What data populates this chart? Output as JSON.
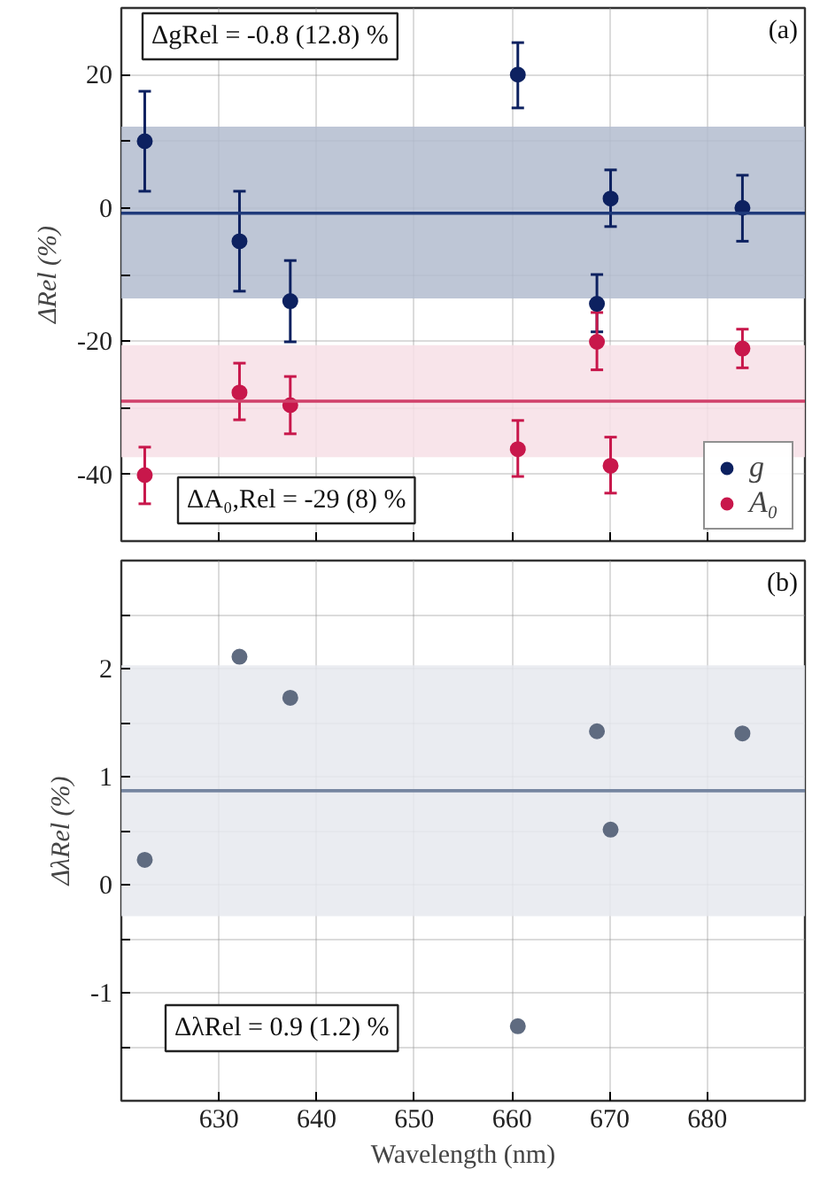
{
  "chart_data": [
    {
      "type": "scatter",
      "ylabel": "ΔRel (%)",
      "xlim": [
        620,
        690
      ],
      "xticks": [
        630,
        640,
        650,
        660,
        670,
        680
      ],
      "ylim": [
        -50,
        30
      ],
      "yticks": [
        -40,
        {
          "value": -30,
          "label": null
        },
        -20,
        {
          "value": -10,
          "label": null
        },
        0,
        {
          "value": 10,
          "label": null
        },
        20
      ],
      "tick_labels": "y",
      "grid": true,
      "legend": "bottom right",
      "marker": "circle",
      "annotations": [
        "(a)",
        "ΔgRel = -0.8 (12.8) %",
        "ΔA₀,Rel = -29 (8) %"
      ],
      "ref_lines": [
        {
          "axis": "y",
          "value": -0.8,
          "color": "#1f3a7a"
        },
        {
          "axis": "y",
          "value": -29,
          "color": "#d0406a"
        }
      ],
      "bands": [
        {
          "axis": "y",
          "from": -13.6,
          "to": 12.2,
          "color": "#b3bccf"
        },
        {
          "axis": "y",
          "from": -37.4,
          "to": -20.6,
          "color": "#f7dfe6"
        }
      ],
      "series": [
        {
          "name": "g",
          "color": "#0d2160",
          "x": [
            622.4,
            632.1,
            637.3,
            660.6,
            668.7,
            670.1,
            683.6
          ],
          "values": [
            10.0,
            -5.0,
            -14.0,
            20.0,
            -14.4,
            1.4,
            0.0
          ],
          "errors": [
            [
              2.5,
              17.5
            ],
            [
              -12.5,
              2.5
            ],
            [
              -20.1,
              -7.9
            ],
            [
              15.0,
              24.8
            ],
            [
              -18.6,
              -10.0
            ],
            [
              -2.8,
              5.7
            ],
            [
              -5.0,
              4.9
            ]
          ]
        },
        {
          "name": "A₀",
          "color": "#c8174b",
          "x": [
            622.4,
            632.1,
            637.3,
            660.6,
            668.7,
            670.1,
            683.6
          ],
          "values": [
            -40.1,
            -27.7,
            -29.6,
            -36.2,
            -20.1,
            -38.7,
            -21.1
          ],
          "errors": [
            [
              -44.4,
              -35.9
            ],
            [
              -31.8,
              -23.3
            ],
            [
              -33.9,
              -25.3
            ],
            [
              -40.3,
              -31.9
            ],
            [
              -24.3,
              -15.7
            ],
            [
              -42.8,
              -34.4
            ],
            [
              -24.0,
              -18.2
            ]
          ]
        }
      ]
    },
    {
      "type": "scatter",
      "xlabel": "Wavelength (nm)",
      "ylabel": "ΔλRel (%)",
      "xlim": [
        620,
        690
      ],
      "xticks": [
        630,
        640,
        650,
        660,
        670,
        680
      ],
      "ylim": [
        -2,
        3
      ],
      "yticks": [
        {
          "value": -1.5,
          "label": null
        },
        -1,
        {
          "value": -0.5,
          "label": null
        },
        0,
        {
          "value": 0.5,
          "label": null
        },
        1,
        {
          "value": 1.5,
          "label": null
        },
        2,
        {
          "value": 2.5,
          "label": null
        }
      ],
      "grid": true,
      "marker": "circle",
      "annotations": [
        "(b)",
        "ΔλRel = 0.9 (1.2) %"
      ],
      "ref_lines": [
        {
          "axis": "y",
          "value": 0.87,
          "color": "#7585a0"
        }
      ],
      "bands": [
        {
          "axis": "y",
          "from": -0.29,
          "to": 2.03,
          "color": "#e6e9ef"
        }
      ],
      "series": [
        {
          "color": "#5f6b80",
          "x": [
            622.4,
            632.1,
            637.3,
            660.6,
            668.7,
            670.1,
            683.6
          ],
          "values": [
            0.23,
            2.11,
            1.73,
            -1.31,
            1.42,
            0.51,
            1.4
          ]
        }
      ]
    }
  ]
}
